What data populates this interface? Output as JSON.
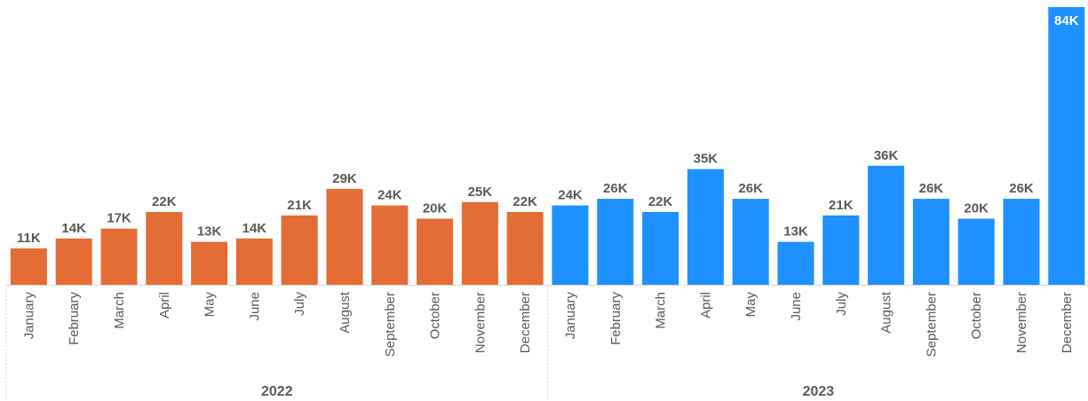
{
  "colors": {
    "group_2022": "#E46C35",
    "group_2023": "#1E90FF",
    "text": "#595959",
    "grid": "#D9D9D9"
  },
  "chart_data": {
    "type": "bar",
    "title": "",
    "xlabel": "",
    "ylabel": "",
    "ylim": [
      0,
      84
    ],
    "grid": false,
    "legend": "none",
    "groups": [
      {
        "name": "2022",
        "color": "#E46C35",
        "categories": [
          "January",
          "February",
          "March",
          "April",
          "May",
          "June",
          "July",
          "August",
          "September",
          "October",
          "November",
          "December"
        ],
        "values": [
          11,
          14,
          17,
          22,
          13,
          14,
          21,
          29,
          24,
          20,
          25,
          22
        ],
        "labels": [
          "11K",
          "14K",
          "17K",
          "22K",
          "13K",
          "14K",
          "21K",
          "29K",
          "24K",
          "20K",
          "25K",
          "22K"
        ]
      },
      {
        "name": "2023",
        "color": "#1E90FF",
        "categories": [
          "January",
          "February",
          "March",
          "April",
          "May",
          "June",
          "July",
          "August",
          "September",
          "October",
          "November",
          "December"
        ],
        "values": [
          24,
          26,
          22,
          35,
          26,
          13,
          21,
          36,
          26,
          20,
          26,
          84
        ],
        "labels": [
          "24K",
          "26K",
          "22K",
          "35K",
          "26K",
          "13K",
          "21K",
          "36K",
          "26K",
          "20K",
          "26K",
          "84K"
        ]
      }
    ]
  }
}
